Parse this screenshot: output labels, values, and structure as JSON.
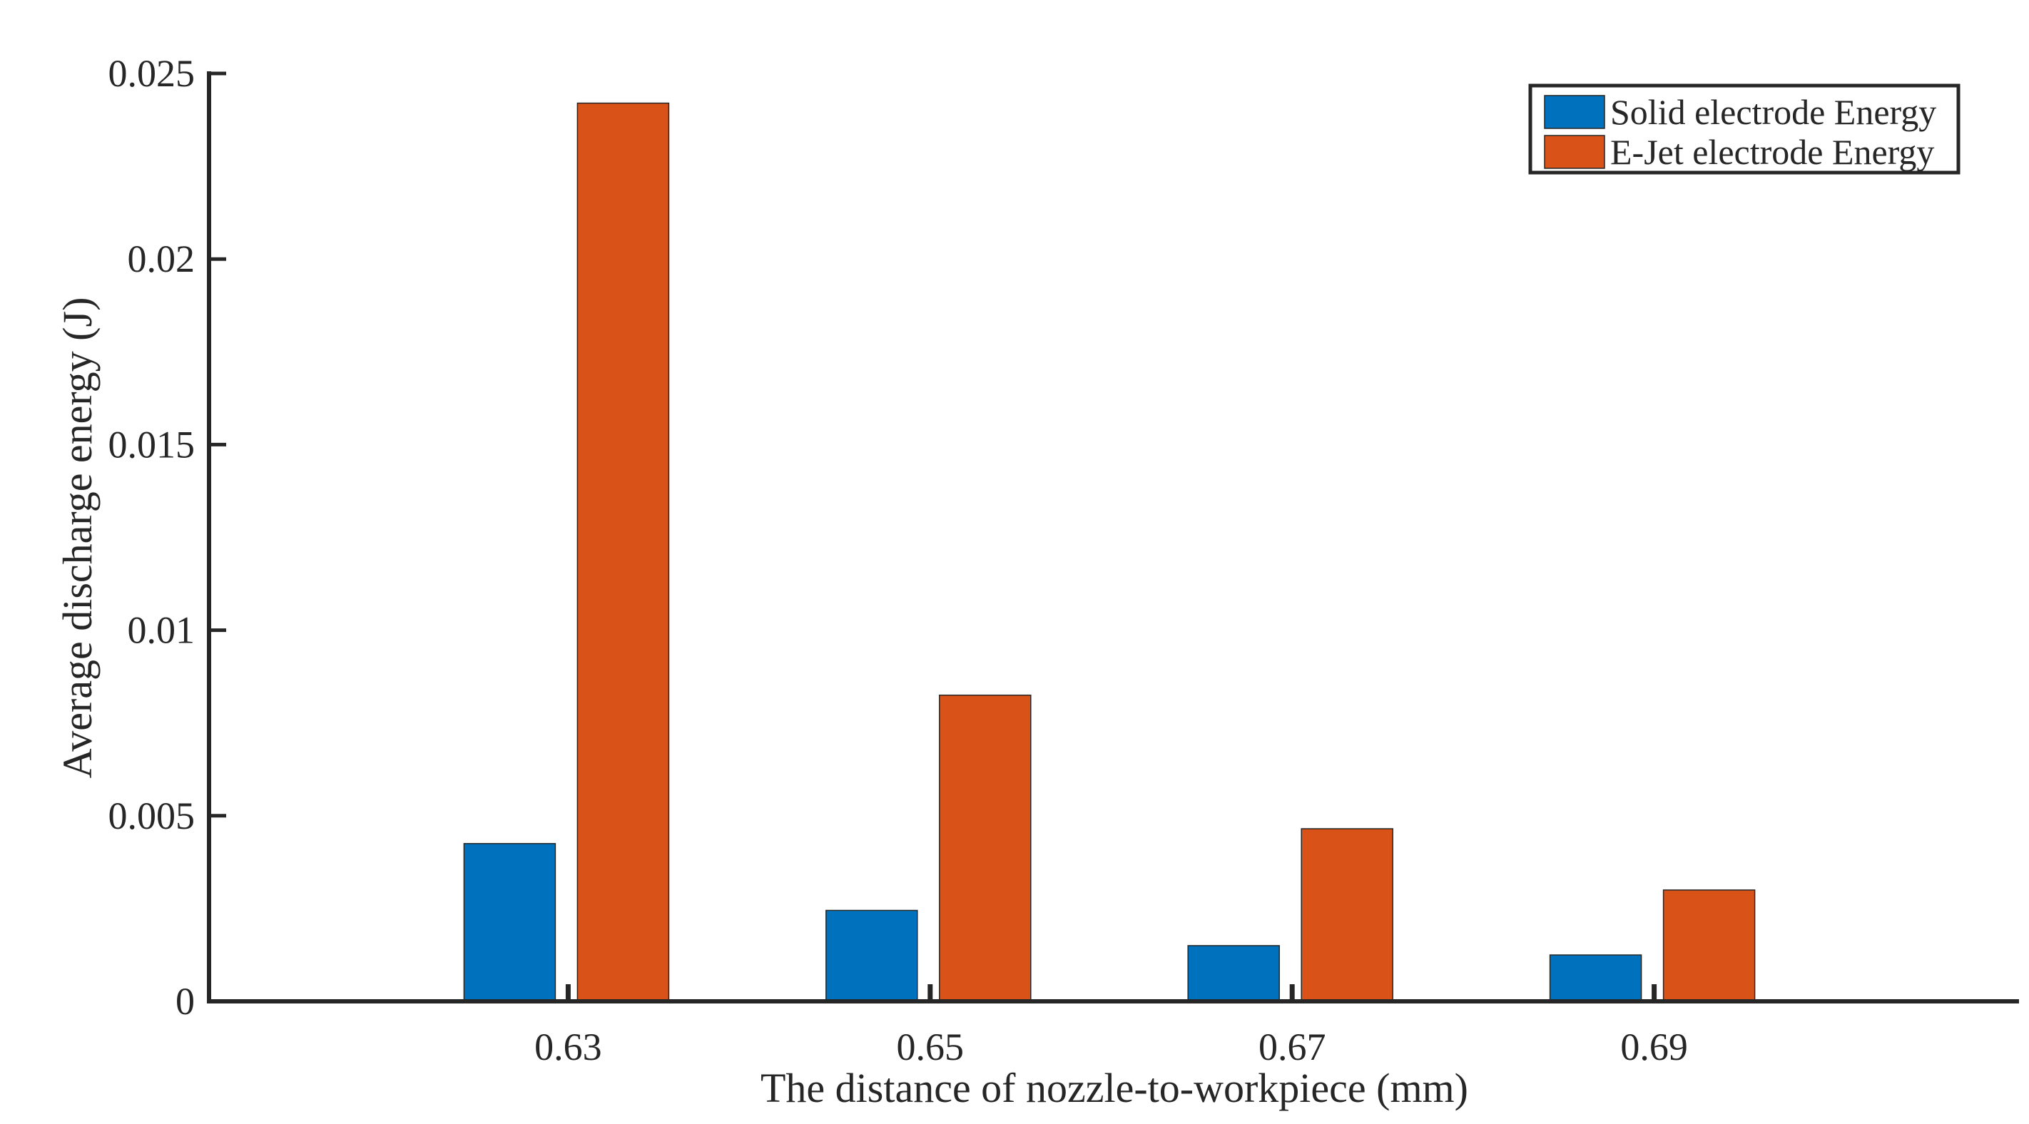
{
  "chart_data": {
    "type": "bar",
    "title": "",
    "xlabel": "The distance of nozzle-to-workpiece (mm)",
    "ylabel": "Average discharge energy (J)",
    "categories": [
      "0.63",
      "0.65",
      "0.67",
      "0.69"
    ],
    "series": [
      {
        "name": "Solid electrode Energy",
        "color": "#0072BD",
        "values": [
          0.00425,
          0.00245,
          0.0015,
          0.00125
        ]
      },
      {
        "name": "E-Jet electrode Energy",
        "color": "#D95319",
        "values": [
          0.0242,
          0.00825,
          0.00465,
          0.003
        ]
      }
    ],
    "ylim": [
      0,
      0.025
    ],
    "yticks": [
      "0",
      "0.005",
      "0.01",
      "0.015",
      "0.02",
      "0.025"
    ],
    "ytick_values": [
      0,
      0.005,
      0.01,
      0.015,
      0.02,
      0.025
    ],
    "grid": false,
    "legend_position": "top-right"
  }
}
